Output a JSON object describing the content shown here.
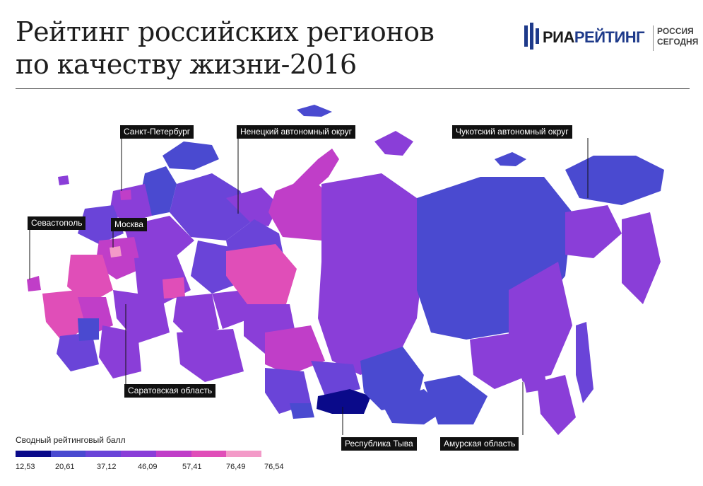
{
  "title": {
    "line1": "Рейтинг российских регионов",
    "line2": "по качеству жизни-2016"
  },
  "logo": {
    "part1": "РИА",
    "part2": "РЕЙТИНГ",
    "sub1": "РОССИЯ",
    "sub2": "СЕГОДНЯ"
  },
  "callouts": {
    "spb": "Санкт-Петербург",
    "nenets": "Ненецкий автономный округ",
    "chukotka": "Чукотский автономный округ",
    "sevastopol": "Севастополь",
    "moscow": "Москва",
    "saratov": "Саратовская область",
    "tuva": "Республика Тыва",
    "amur": "Амурская область"
  },
  "legend": {
    "title": "Сводный рейтинговый балл",
    "colors": [
      "#0a0a8a",
      "#4a4ad0",
      "#6a44d8",
      "#8a3ed8",
      "#c03ec8",
      "#e04eb8",
      "#f39ac8"
    ],
    "ticks": [
      "12,53",
      "20,61",
      "37,12",
      "46,09",
      "57,41",
      "76,49",
      "76,54"
    ]
  },
  "colors": {
    "low": "#0a0a8a",
    "mid_low": "#4a4ad0",
    "mid": "#7a3ed8",
    "high": "#d040c0",
    "top": "#ef5ab6"
  }
}
